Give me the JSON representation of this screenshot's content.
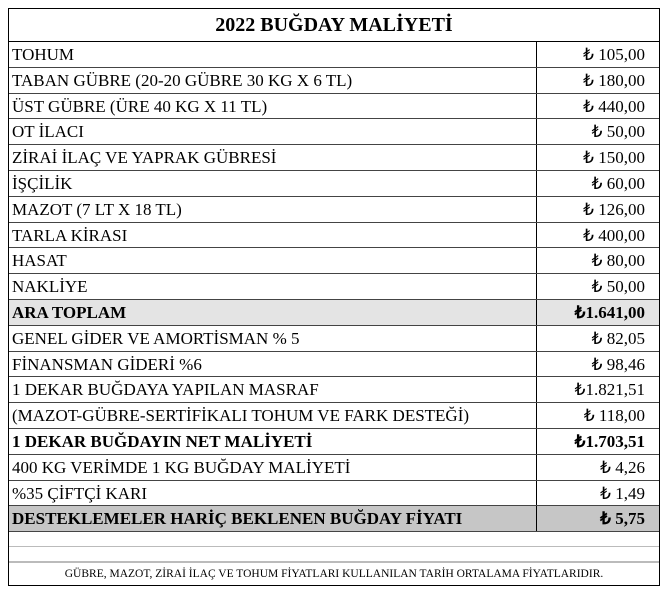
{
  "header": {
    "title": "2022 BUĞDAY MALİYETİ"
  },
  "table": {
    "rows": [
      {
        "label": "TOHUM",
        "value": "₺ 105,00"
      },
      {
        "label": "TABAN GÜBRE (20-20 GÜBRE 30 KG X 6 TL)",
        "value": "₺ 180,00"
      },
      {
        "label": "ÜST GÜBRE (ÜRE 40 KG X 11 TL)",
        "value": "₺ 440,00"
      },
      {
        "label": "OT İLACI",
        "value": "₺ 50,00"
      },
      {
        "label": "ZİRAİ İLAÇ VE YAPRAK GÜBRESİ",
        "value": "₺ 150,00"
      },
      {
        "label": "İŞÇİLİK",
        "value": "₺ 60,00"
      },
      {
        "label": "MAZOT (7 LT X 18 TL)",
        "value": "₺ 126,00"
      },
      {
        "label": "TARLA KİRASI",
        "value": "₺ 400,00"
      },
      {
        "label": "HASAT",
        "value": "₺ 80,00"
      },
      {
        "label": "NAKLİYE",
        "value": "₺ 50,00"
      },
      {
        "label": "ARA TOPLAM",
        "value": "₺1.641,00",
        "style": "subtotal"
      },
      {
        "label": "GENEL GİDER VE AMORTİSMAN % 5",
        "value": "₺ 82,05"
      },
      {
        "label": "FİNANSMAN GİDERİ %6",
        "value": "₺ 98,46"
      },
      {
        "label": "1 DEKAR BUĞDAYA YAPILAN MASRAF",
        "value": "₺1.821,51"
      },
      {
        "label": "(MAZOT-GÜBRE-SERTİFİKALI TOHUM VE FARK DESTEĞİ)",
        "value": "₺ 118,00"
      },
      {
        "label": "1 DEKAR BUĞDAYIN NET MALİYETİ",
        "value": "₺1.703,51",
        "style": "bold"
      },
      {
        "label": "400 KG VERİMDE 1 KG BUĞDAY MALİYETİ",
        "value": "₺ 4,26"
      },
      {
        "label": "%35 ÇİFTÇİ KARI",
        "value": "₺ 1,49"
      },
      {
        "label": "DESTEKLEMELER HARİÇ BEKLENEN BUĞDAY FİYATI",
        "value": "₺ 5,75",
        "style": "total"
      }
    ]
  },
  "footer": {
    "note": "GÜBRE, MAZOT, ZİRAİ İLAÇ VE TOHUM FİYATLARI KULLANILAN TARİH ORTALAMA FİYATLARIDIR."
  }
}
